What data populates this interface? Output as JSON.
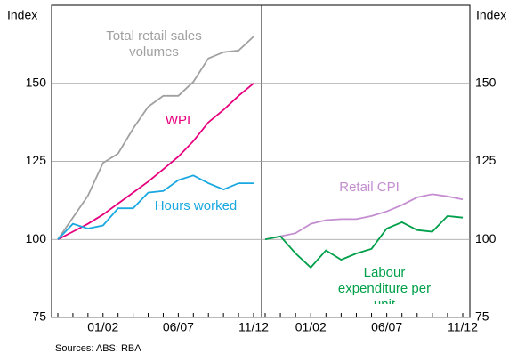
{
  "chart_data": [
    {
      "type": "line",
      "y_label": "Index",
      "categories": [
        null,
        null,
        null,
        "01/02",
        null,
        null,
        null,
        null,
        "06/07",
        null,
        null,
        null,
        null,
        "11/12"
      ],
      "ylim": [
        75,
        175
      ],
      "yticks": [
        75,
        100,
        125,
        150
      ],
      "grid": true,
      "series": [
        {
          "name": "Total retail sales volumes",
          "color": "#a0a0a0",
          "values": [
            100,
            107,
            114,
            124.5,
            127.5,
            135.5,
            142.5,
            146,
            146,
            150.5,
            158,
            160,
            160.5,
            165
          ]
        },
        {
          "name": "WPI",
          "color": "#e6007e",
          "values": [
            100,
            102.5,
            105,
            108,
            111.5,
            115,
            118.5,
            122.5,
            126.5,
            131.5,
            137.5,
            141.5,
            146,
            150
          ]
        },
        {
          "name": "Hours worked",
          "color": "#1aa8e0",
          "values": [
            100,
            105,
            103.5,
            104.5,
            110,
            110,
            115,
            115.5,
            119,
            120.5,
            118,
            116,
            118,
            118
          ]
        }
      ]
    },
    {
      "type": "line",
      "y_label": "Index",
      "categories": [
        null,
        null,
        null,
        "01/02",
        null,
        null,
        null,
        null,
        "06/07",
        null,
        null,
        null,
        null,
        "11/12"
      ],
      "ylim": [
        75,
        175
      ],
      "yticks": [
        75,
        100,
        125,
        150
      ],
      "grid": true,
      "series": [
        {
          "name": "Retail CPI",
          "color": "#c48ed0",
          "values": [
            100,
            101,
            102,
            105,
            106.2,
            106.5,
            106.5,
            107.5,
            109,
            111,
            113.5,
            114.5,
            113.8,
            112.8
          ]
        },
        {
          "name": "Labour expenditure per unit",
          "color": "#00a04a",
          "values": [
            100,
            101,
            95.5,
            91,
            96.5,
            93.5,
            95.5,
            97,
            103.5,
            105.5,
            103,
            102.5,
            107.5,
            107
          ]
        }
      ]
    }
  ],
  "source": "Sources: ABS; RBA"
}
